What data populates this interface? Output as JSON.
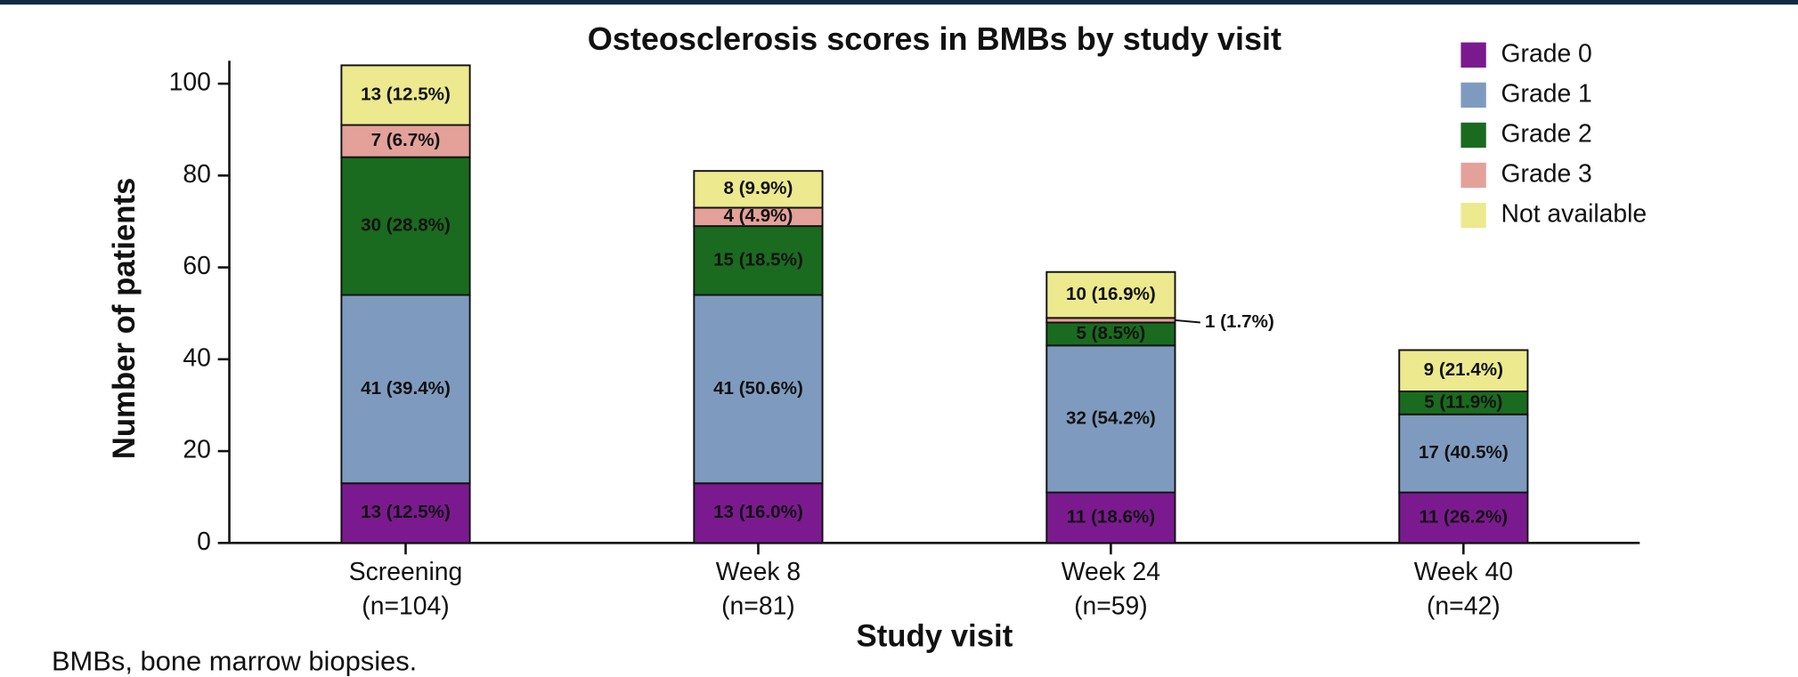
{
  "chart_data": {
    "type": "stacked_bar",
    "title": "Osteosclerosis scores in BMBs by study visit",
    "x_label": "Study visit",
    "y_label": "Number of patients",
    "footnote": "BMBs, bone marrow biopsies.",
    "categories": [
      "Screening\n(n=104)",
      "Week 8\n(n=81)",
      "Week 24\n(n=59)",
      "Week 40\n(n=42)"
    ],
    "series": [
      {
        "name": "Grade 0",
        "color": "#7b1a8f",
        "label_color": "#ffffff",
        "values": [
          13,
          13,
          11,
          11
        ],
        "value_labels": [
          "13 (12.5%)",
          "13 (16.0%)",
          "11 (18.6%)",
          "11 (26.2%)"
        ]
      },
      {
        "name": "Grade 1",
        "color": "#7e9bbf",
        "label_color": "#ffffff",
        "values": [
          41,
          41,
          32,
          17
        ],
        "value_labels": [
          "41 (39.4%)",
          "41 (50.6%)",
          "32 (54.2%)",
          "17 (40.5%)"
        ]
      },
      {
        "name": "Grade 2",
        "color": "#1a6b1f",
        "label_color": "#ffffff",
        "values": [
          30,
          15,
          5,
          5
        ],
        "value_labels": [
          "30 (28.8%)",
          "15 (18.5%)",
          "5 (8.5%)",
          "5 (11.9%)"
        ]
      },
      {
        "name": "Grade 3",
        "color": "#e3a19a",
        "label_color": "#111111",
        "values": [
          7,
          4,
          1,
          null
        ],
        "value_labels": [
          "7 (6.7%)",
          "4 (4.9%)",
          "1 (1.7%)",
          null
        ]
      },
      {
        "name": "Not available",
        "color": "#ece98e",
        "label_color": "#111111",
        "values": [
          13,
          8,
          10,
          9
        ],
        "value_labels": [
          "13 (12.5%)",
          "8 (9.9%)",
          "10 (16.9%)",
          "9 (21.4%)"
        ]
      }
    ],
    "ylim": [
      0,
      105
    ],
    "yticks": [
      0,
      20,
      40,
      60,
      80,
      100
    ],
    "legend": "upper right"
  }
}
